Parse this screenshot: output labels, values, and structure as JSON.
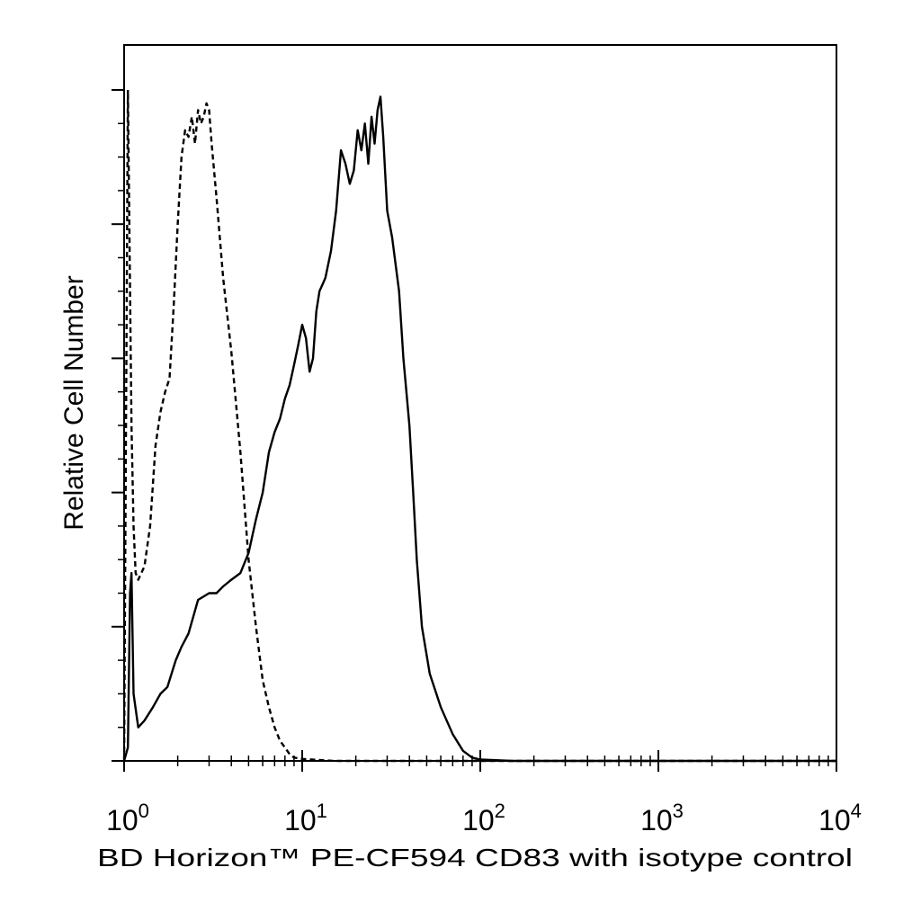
{
  "chart_data": {
    "type": "line",
    "title": "",
    "xlabel": "BD Horizon™ PE-CF594 CD83 with isotype control",
    "ylabel": "Relative Cell Number",
    "x_scale": "log",
    "xlim": [
      1,
      10000
    ],
    "ylim": [
      0,
      100
    ],
    "x_tick_labels": [
      {
        "base": "10",
        "exp": "0",
        "value": 1
      },
      {
        "base": "10",
        "exp": "1",
        "value": 10
      },
      {
        "base": "10",
        "exp": "2",
        "value": 100
      },
      {
        "base": "10",
        "exp": "3",
        "value": 1000
      },
      {
        "base": "10",
        "exp": "4",
        "value": 10000
      }
    ],
    "y_major_ticks": [
      0,
      20,
      40,
      60,
      80,
      100
    ],
    "grid": false,
    "legend": "none",
    "series": [
      {
        "style": "solid",
        "color": "#000000",
        "x": [
          1.0,
          1.05,
          1.08,
          1.1,
          1.13,
          1.2,
          1.3,
          1.45,
          1.6,
          1.75,
          1.95,
          2.1,
          2.3,
          2.6,
          3.0,
          3.3,
          3.6,
          4.0,
          4.5,
          5.0,
          5.5,
          6.0,
          6.5,
          7.0,
          7.5,
          8.0,
          8.5,
          9.0,
          9.5,
          10.0,
          10.5,
          11.0,
          11.5,
          12.0,
          12.5,
          13.0,
          13.5,
          14.5,
          15.5,
          16.5,
          17.5,
          18.5,
          19.5,
          20.5,
          21.5,
          22.5,
          23.5,
          24.5,
          25.5,
          26.5,
          27.5,
          28.5,
          30.0,
          32.0,
          35.0,
          37.0,
          40.0,
          42.0,
          44.0,
          47.0,
          52.0,
          60.0,
          70.0,
          80.0,
          90.0,
          100.0,
          150.0,
          1000.0,
          10000.0
        ],
        "y": [
          0,
          2,
          25,
          28,
          10,
          5,
          6,
          8,
          10,
          11,
          15,
          17,
          19,
          24,
          25,
          25,
          26,
          27,
          28,
          31,
          36,
          40,
          46,
          49,
          51,
          54,
          56,
          59,
          62,
          65,
          63,
          58,
          60,
          67,
          70,
          71,
          72,
          76,
          82,
          91,
          89,
          86,
          88,
          94,
          91,
          95,
          89,
          96,
          92,
          97,
          99,
          93,
          82,
          78,
          70,
          60,
          50,
          40,
          30,
          20,
          13,
          8,
          4,
          1.5,
          0.5,
          0.2,
          0,
          0,
          0
        ]
      },
      {
        "style": "dashed",
        "color": "#000000",
        "x": [
          1.0,
          1.05,
          1.08,
          1.1,
          1.13,
          1.16,
          1.2,
          1.3,
          1.4,
          1.5,
          1.6,
          1.7,
          1.8,
          1.9,
          2.0,
          2.1,
          2.2,
          2.3,
          2.4,
          2.5,
          2.6,
          2.7,
          2.8,
          2.9,
          3.0,
          3.1,
          3.3,
          3.6,
          4.0,
          4.5,
          5.0,
          5.5,
          6.0,
          6.5,
          7.0,
          7.5,
          8.0,
          8.5,
          9.0,
          10.0,
          15.0,
          30.0,
          100.0,
          1000.0,
          10000.0
        ],
        "y": [
          0,
          100,
          70,
          50,
          35,
          28,
          27,
          29,
          35,
          47,
          52,
          55,
          57,
          68,
          80,
          90,
          94,
          93,
          96,
          92,
          97,
          95,
          96,
          98,
          97,
          92,
          84,
          72,
          61,
          46,
          30,
          20,
          12,
          8,
          5,
          3,
          2,
          1,
          0.5,
          0.3,
          0,
          0,
          0,
          0,
          0
        ]
      }
    ]
  }
}
